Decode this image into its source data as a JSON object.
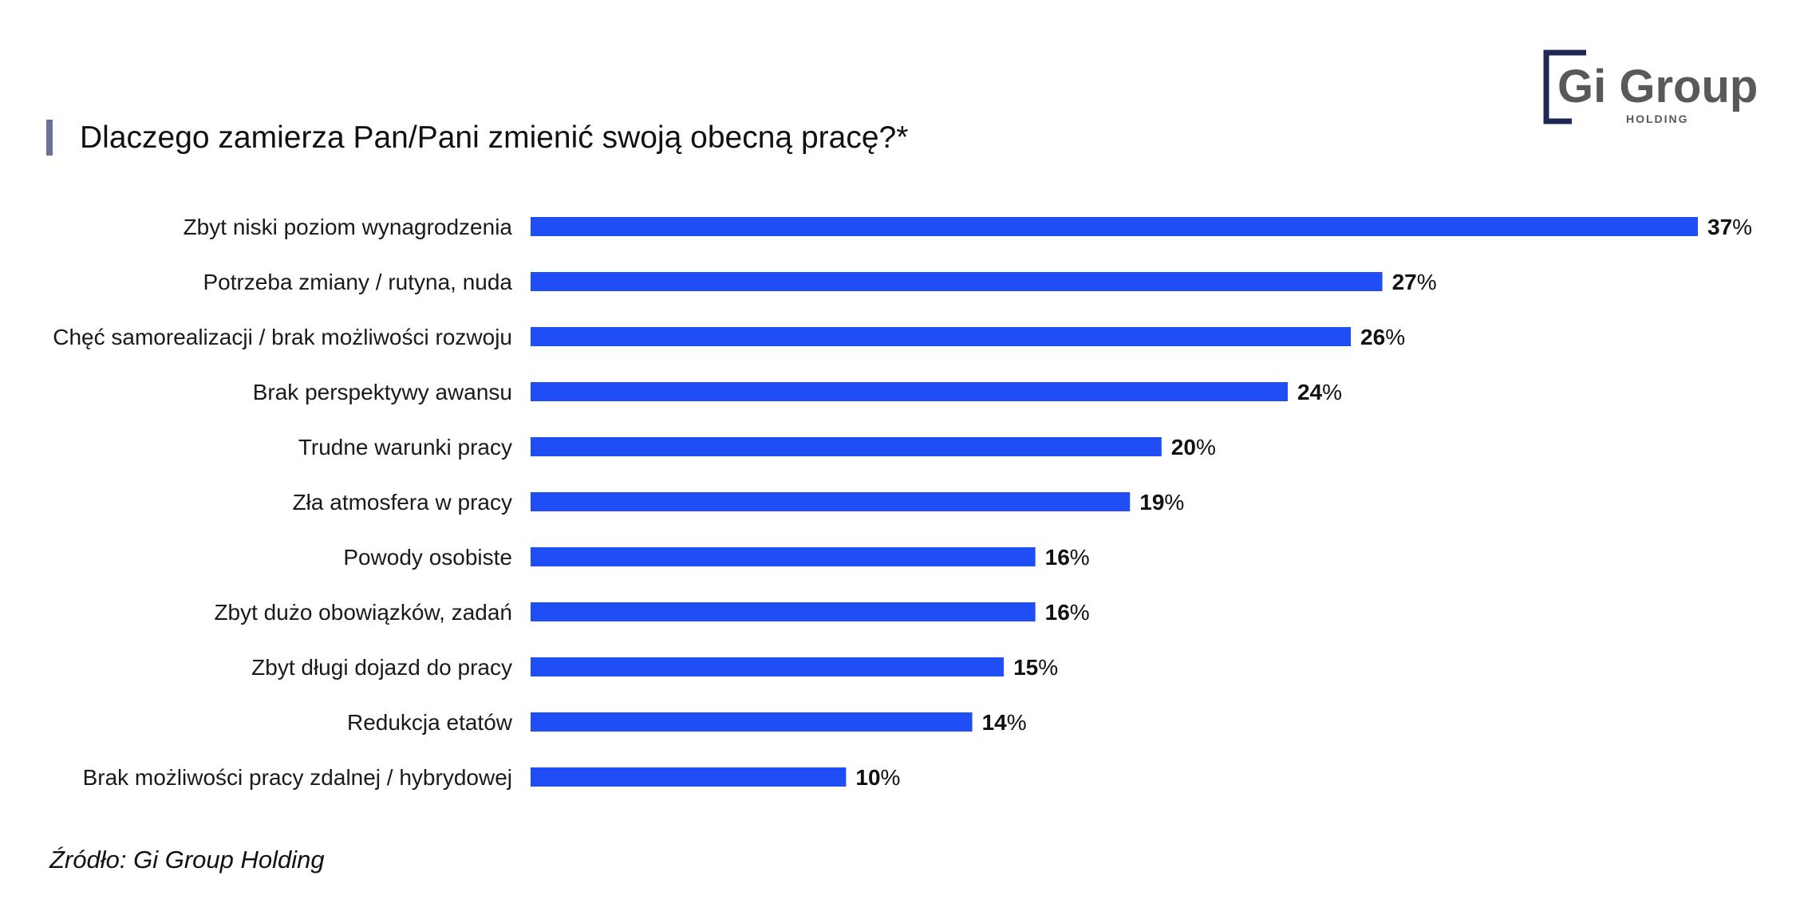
{
  "title": "Dlaczego zamierza Pan/Pani zmienić swoją obecną pracę?*",
  "source": "Źródło: Gi Group Holding",
  "logo": {
    "name": "Gi Group",
    "subtitle": "HOLDING",
    "color": "#1f2757",
    "text_color": "#595959"
  },
  "colors": {
    "bar": "#1f4ef5",
    "title_accent": "#6b7199"
  },
  "chart_data": {
    "type": "bar",
    "orientation": "horizontal",
    "title": "Dlaczego zamierza Pan/Pani zmienić swoją obecną pracę?*",
    "categories": [
      "Zbyt niski poziom wynagrodzenia",
      "Potrzeba zmiany / rutyna, nuda",
      "Chęć samorealizacji / brak możliwości rozwoju",
      "Brak perspektywy awansu",
      "Trudne warunki pracy",
      "Zła atmosfera w pracy",
      "Powody osobiste",
      "Zbyt dużo obowiązków, zadań",
      "Zbyt długi dojazd do pracy",
      "Redukcja etatów",
      "Brak możliwości pracy zdalnej / hybrydowej"
    ],
    "values": [
      37,
      27,
      26,
      24,
      20,
      19,
      16,
      16,
      15,
      14,
      10
    ],
    "value_unit": "%",
    "xlim": [
      0,
      37
    ],
    "grid": false,
    "legend": false
  }
}
